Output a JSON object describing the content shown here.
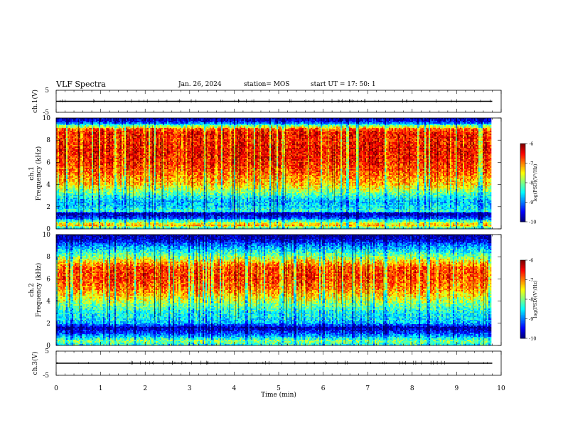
{
  "header": {
    "title": "VLF Spectra",
    "date": "Jan. 26, 2024",
    "station": "station= MOS",
    "start_time": "start  UT  =   17: 50: 1"
  },
  "chart_data": [
    {
      "type": "line",
      "id": "ch1-waveform",
      "ylabel": "ch.1(V)",
      "ylim": [
        -5,
        5
      ],
      "yticks": [
        "5",
        "-5"
      ],
      "xlim": [
        0,
        10
      ],
      "series": [
        {
          "x": [
            0,
            9.8
          ],
          "y": [
            0,
            0
          ]
        }
      ]
    },
    {
      "type": "heatmap",
      "id": "ch1-spectrogram",
      "ylabel": "ch.1\nFrequency  (kHz)",
      "ylim": [
        0,
        10
      ],
      "yticks": [
        "0",
        "2",
        "4",
        "6",
        "8",
        "10"
      ],
      "xlim": [
        0,
        10
      ],
      "data_xmax": 9.8,
      "colorbar": {
        "label": "log(PSD)(V²/Hz)",
        "range": [
          -10,
          -6
        ],
        "ticks": [
          "-6",
          "-7",
          "-8",
          "-9",
          "-10"
        ]
      },
      "profile": [
        [
          0.0,
          -8.6
        ],
        [
          0.3,
          -7.2
        ],
        [
          0.6,
          -7.8
        ],
        [
          1.0,
          -9.3
        ],
        [
          1.4,
          -9.8
        ],
        [
          1.6,
          -8.3
        ],
        [
          2.0,
          -8.6
        ],
        [
          2.5,
          -8.7
        ],
        [
          3.0,
          -8.3
        ],
        [
          3.5,
          -7.8
        ],
        [
          4.0,
          -7.3
        ],
        [
          5.0,
          -6.9
        ],
        [
          6.0,
          -6.6
        ],
        [
          7.0,
          -6.5
        ],
        [
          8.0,
          -6.6
        ],
        [
          8.6,
          -6.5
        ],
        [
          9.0,
          -6.8
        ],
        [
          9.3,
          -8.0
        ],
        [
          9.6,
          -9.3
        ],
        [
          10.0,
          -9.8
        ]
      ]
    },
    {
      "type": "heatmap",
      "id": "ch2-spectrogram",
      "ylabel": "ch.2\nFrequency  (kHz)",
      "ylim": [
        0,
        10
      ],
      "yticks": [
        "0",
        "2",
        "4",
        "6",
        "8",
        "10"
      ],
      "xlim": [
        0,
        10
      ],
      "data_xmax": 9.8,
      "colorbar": {
        "label": "log(PSD)(V²/Hz)",
        "range": [
          -10,
          -6
        ],
        "ticks": [
          "-6",
          "-7",
          "-8",
          "-9",
          "-10"
        ]
      },
      "profile": [
        [
          0.0,
          -8.4
        ],
        [
          0.4,
          -7.9
        ],
        [
          0.8,
          -8.7
        ],
        [
          1.2,
          -9.3
        ],
        [
          1.6,
          -9.8
        ],
        [
          2.0,
          -8.7
        ],
        [
          2.5,
          -8.5
        ],
        [
          3.0,
          -8.4
        ],
        [
          3.5,
          -8.1
        ],
        [
          4.0,
          -7.7
        ],
        [
          5.0,
          -7.0
        ],
        [
          6.0,
          -6.7
        ],
        [
          7.0,
          -6.7
        ],
        [
          7.5,
          -7.2
        ],
        [
          8.0,
          -7.9
        ],
        [
          8.5,
          -8.4
        ],
        [
          9.0,
          -8.9
        ],
        [
          9.5,
          -9.6
        ],
        [
          10.0,
          -9.9
        ]
      ]
    },
    {
      "type": "line",
      "id": "ch3-waveform",
      "ylabel": "ch.3(V)",
      "ylim": [
        -5,
        5
      ],
      "yticks": [
        "5",
        "-5"
      ],
      "xlim": [
        0,
        10
      ],
      "xlabel": "Time  (min)",
      "xticks": [
        "0",
        "1",
        "2",
        "3",
        "4",
        "5",
        "6",
        "7",
        "8",
        "9",
        "10"
      ],
      "series": [
        {
          "x": [
            0,
            9.8
          ],
          "y": [
            0,
            0
          ]
        }
      ]
    }
  ]
}
